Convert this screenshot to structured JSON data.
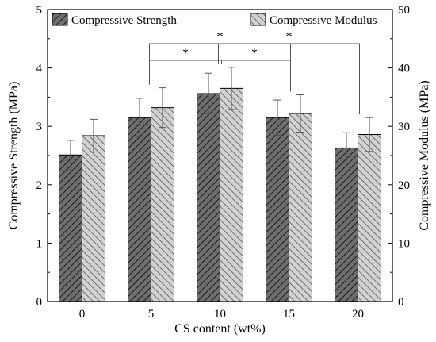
{
  "chart_data": {
    "type": "bar",
    "categories": [
      "0",
      "5",
      "10",
      "15",
      "20"
    ],
    "xlabel": "CS content (wt%)",
    "ylabel_left": "Compressive Strength (MPa)",
    "ylabel_right": "Compressive Modulus (MPa)",
    "ylim_left": [
      0,
      5
    ],
    "ylim_right": [
      0,
      50
    ],
    "yticks_left": [
      "0",
      "1",
      "2",
      "3",
      "4",
      "5"
    ],
    "yticks_right": [
      "0",
      "10",
      "20",
      "30",
      "40",
      "50"
    ],
    "grid": false,
    "legend_position": "top",
    "series": [
      {
        "name": "Compressive Strength",
        "axis": "left",
        "values": [
          2.51,
          3.15,
          3.56,
          3.15,
          2.63
        ],
        "errors": [
          0.25,
          0.33,
          0.35,
          0.3,
          0.26
        ],
        "fill": "#6e6e6e",
        "hatch_color": "#1a1a1a"
      },
      {
        "name": "Compressive Modulus",
        "axis": "right",
        "values": [
          28.4,
          33.2,
          36.5,
          32.2,
          28.6
        ],
        "errors": [
          2.8,
          3.4,
          3.6,
          3.2,
          2.9
        ],
        "fill": "#d2d2d2",
        "hatch_color": "#555555"
      }
    ],
    "significance": [
      {
        "from": "5",
        "to": "10",
        "label": "*"
      },
      {
        "from": "10",
        "to": "15",
        "label": "*"
      },
      {
        "from": "5",
        "to": "15",
        "label": "*"
      },
      {
        "from": "10",
        "to": "20",
        "label": "*"
      }
    ]
  }
}
